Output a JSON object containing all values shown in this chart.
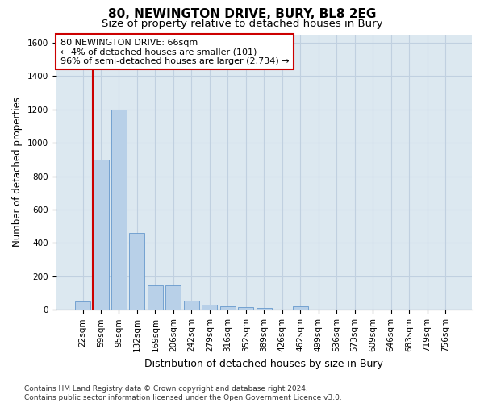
{
  "title1": "80, NEWINGTON DRIVE, BURY, BL8 2EG",
  "title2": "Size of property relative to detached houses in Bury",
  "xlabel": "Distribution of detached houses by size in Bury",
  "ylabel": "Number of detached properties",
  "categories": [
    "22sqm",
    "59sqm",
    "95sqm",
    "132sqm",
    "169sqm",
    "206sqm",
    "242sqm",
    "279sqm",
    "316sqm",
    "352sqm",
    "389sqm",
    "426sqm",
    "462sqm",
    "499sqm",
    "536sqm",
    "573sqm",
    "609sqm",
    "646sqm",
    "683sqm",
    "719sqm",
    "756sqm"
  ],
  "values": [
    50,
    900,
    1200,
    460,
    148,
    148,
    55,
    30,
    20,
    15,
    10,
    0,
    20,
    0,
    0,
    0,
    0,
    0,
    0,
    0,
    0
  ],
  "bar_color": "#b8d0e8",
  "bar_edge_color": "#6699cc",
  "vline_x_index": 1,
  "vline_color": "#cc0000",
  "annotation_text": "80 NEWINGTON DRIVE: 66sqm\n← 4% of detached houses are smaller (101)\n96% of semi-detached houses are larger (2,734) →",
  "annotation_box_color": "#ffffff",
  "annotation_box_edge_color": "#cc0000",
  "ylim": [
    0,
    1650
  ],
  "yticks": [
    0,
    200,
    400,
    600,
    800,
    1000,
    1200,
    1400,
    1600
  ],
  "grid_color": "#c0d0e0",
  "bg_color": "#dce8f0",
  "footer": "Contains HM Land Registry data © Crown copyright and database right 2024.\nContains public sector information licensed under the Open Government Licence v3.0.",
  "title1_fontsize": 11,
  "title2_fontsize": 9.5,
  "xlabel_fontsize": 9,
  "ylabel_fontsize": 8.5,
  "tick_fontsize": 7.5,
  "footer_fontsize": 6.5,
  "annot_fontsize": 8
}
